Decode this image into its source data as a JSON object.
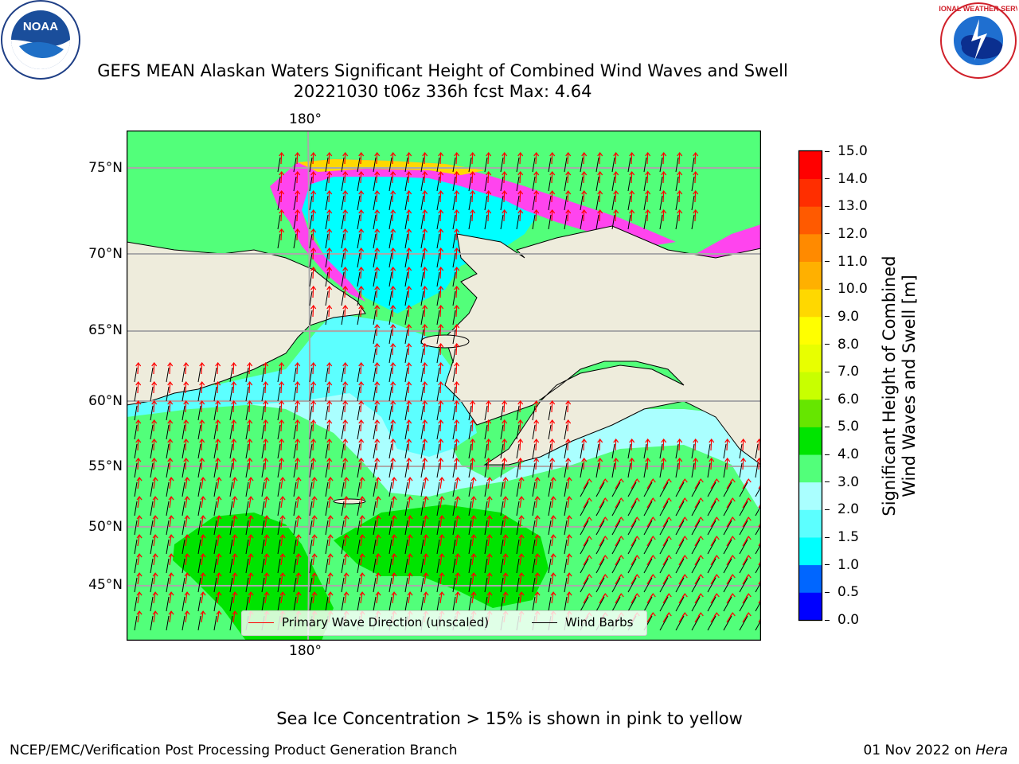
{
  "title": {
    "line1": "GEFS MEAN Alaskan Waters Significant Height of Combined Wind Waves and Swell",
    "line2": "20221030 t06z 336h fcst   Max: 4.64"
  },
  "logos": {
    "left": "NOAA",
    "right": "NATIONAL WEATHER SERVICE"
  },
  "map": {
    "lon_label_top": "180°",
    "lon_label_bottom": "180°",
    "lat_labels": [
      "75°N",
      "70°N",
      "65°N",
      "60°N",
      "55°N",
      "50°N",
      "45°N"
    ]
  },
  "legend": {
    "wave_label": "Primary Wave Direction (unscaled)",
    "wind_label": "Wind Barbs"
  },
  "colorbar": {
    "title_line1": "Significant Height of Combined",
    "title_line2": "Wind Waves and Swell [m]",
    "ticks": [
      "0.0",
      "0.5",
      "1.0",
      "1.5",
      "2.0",
      "3.0",
      "4.0",
      "5.0",
      "6.0",
      "7.0",
      "8.0",
      "9.0",
      "10.0",
      "11.0",
      "12.0",
      "13.0",
      "14.0",
      "15.0"
    ],
    "colors": [
      "#0000ff",
      "#0066ff",
      "#00ffff",
      "#5cffff",
      "#aaffff",
      "#52ff7a",
      "#00e400",
      "#66e600",
      "#c8ff00",
      "#e8ff00",
      "#ffff00",
      "#ffd800",
      "#ffb000",
      "#ff8a00",
      "#ff5a00",
      "#ff2e00",
      "#ff0000"
    ]
  },
  "colors": {
    "land": "#eeecdc",
    "ice_pink": "#ff44ee",
    "wave_arrow": "#ff0000",
    "wind_barb": "#000000"
  },
  "sea_ice_note": "Sea Ice Concentration > 15% is shown in pink to yellow",
  "footer": {
    "left": "NCEP/EMC/Verification Post Processing Product Generation Branch",
    "right_date": "01 Nov 2022 on ",
    "right_host": "Hera"
  }
}
